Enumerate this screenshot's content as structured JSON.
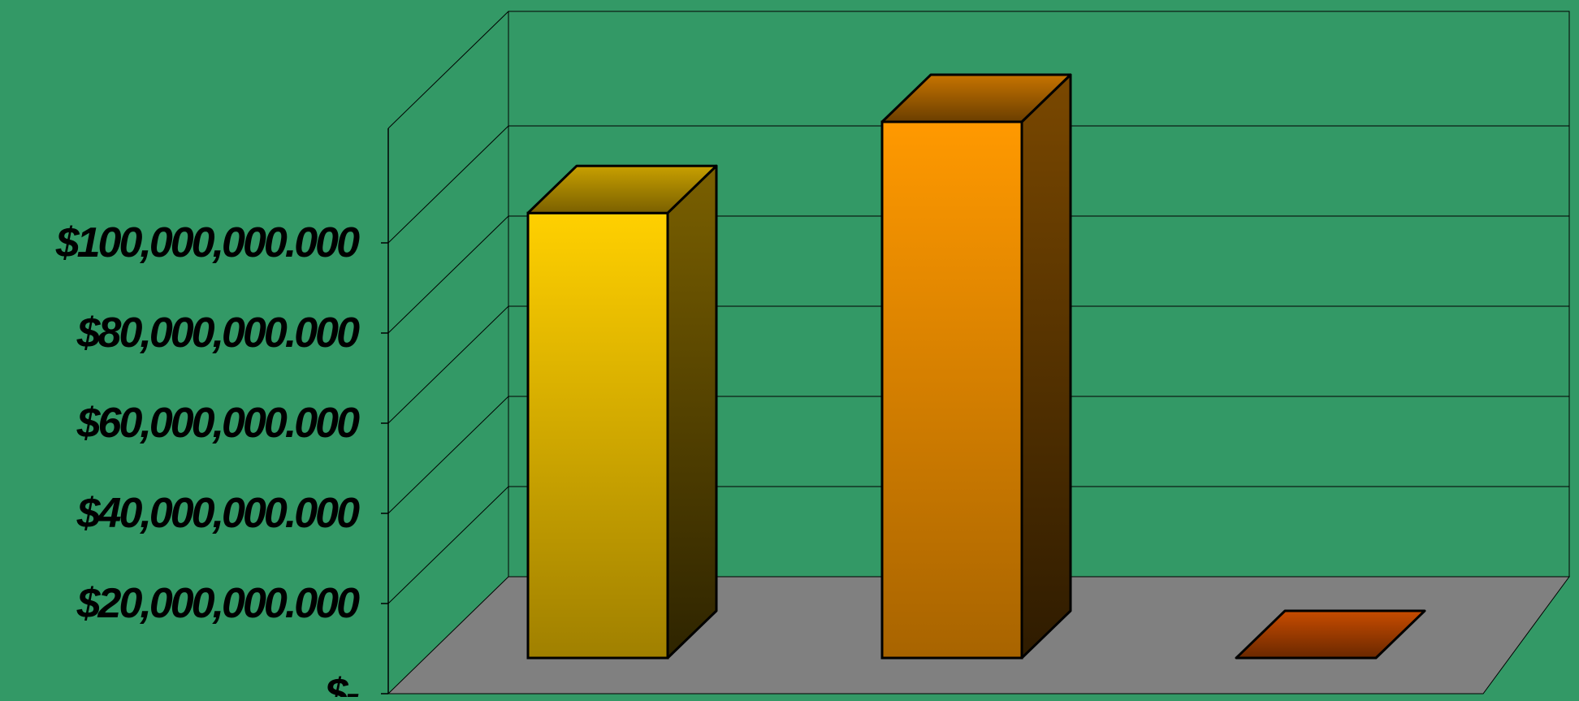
{
  "colors": {
    "background": "#339966",
    "floor": "#808080",
    "grid": "#000000"
  },
  "chart_data": {
    "type": "bar",
    "variant": "3d-column",
    "categories": [
      "",
      "",
      ""
    ],
    "values": [
      83000000,
      100000000,
      0
    ],
    "bar_colors": [
      {
        "front_top": "#FFD000",
        "front_bottom": "#A08000",
        "side_top": "#7A6000",
        "side_bottom": "#2E2400",
        "top_light": "#C8A000",
        "top_dark": "#7A6000"
      },
      {
        "front_top": "#FF9900",
        "front_bottom": "#A86400",
        "side_top": "#7A4800",
        "side_bottom": "#2E1B00",
        "top_light": "#C77400",
        "top_dark": "#6A3E00"
      },
      {
        "front_top": "#C84C00",
        "front_bottom": "#8A3300",
        "side_top": "#7A2E00",
        "side_bottom": "#2E1100",
        "top_light": "#C84C00",
        "top_dark": "#6A2800"
      }
    ],
    "ylim": [
      0,
      100000000
    ],
    "yticks": [
      0,
      20000000,
      40000000,
      60000000,
      80000000,
      100000000
    ],
    "ytick_labels": [
      "$-",
      "$20,000,000.000",
      "$40,000,000.000",
      "$60,000,000.000",
      "$80,000,000.000",
      "$100,000,000.000"
    ],
    "title": "",
    "xlabel": "",
    "ylabel": "",
    "grid": true,
    "legend": "none"
  }
}
